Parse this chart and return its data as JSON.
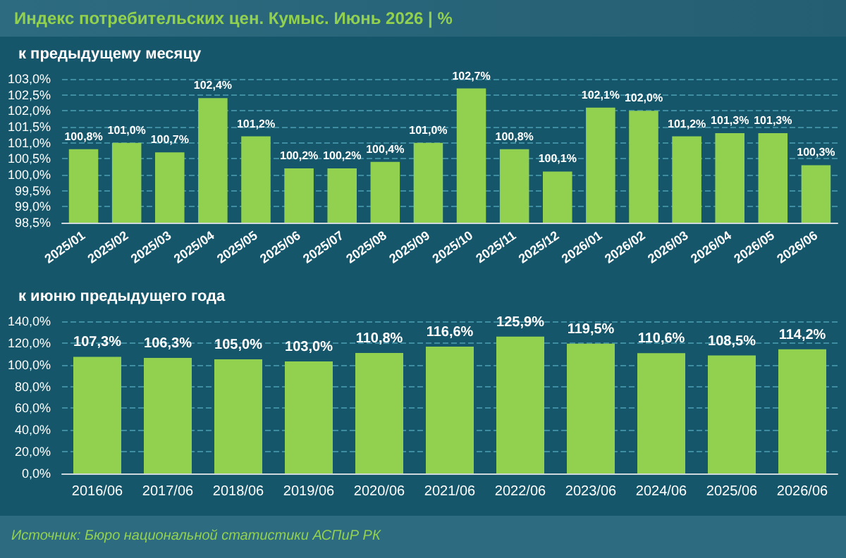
{
  "chart_data": [
    {
      "type": "bar",
      "title": "Индекс потребительских цен. Кумыс. Июнь 2026 | %",
      "subtitle": "к предыдущему месяцу",
      "categories": [
        "2025/01",
        "2025/02",
        "2025/03",
        "2025/04",
        "2025/05",
        "2025/06",
        "2025/07",
        "2025/08",
        "2025/09",
        "2025/10",
        "2025/11",
        "2025/12",
        "2026/01",
        "2026/02",
        "2026/03",
        "2026/04",
        "2026/05",
        "2026/06"
      ],
      "values": [
        100.8,
        101.0,
        100.7,
        102.4,
        101.2,
        100.2,
        100.2,
        100.4,
        101.0,
        102.7,
        100.8,
        100.1,
        102.1,
        102.0,
        101.2,
        101.3,
        101.3,
        100.3
      ],
      "value_labels": [
        "100,8%",
        "101,0%",
        "100,7%",
        "102,4%",
        "101,2%",
        "100,2%",
        "100,2%",
        "100,4%",
        "101,0%",
        "102,7%",
        "100,8%",
        "100,1%",
        "102,1%",
        "102,0%",
        "101,2%",
        "101,3%",
        "101,3%",
        "100,3%"
      ],
      "color": "#92d050",
      "ylim": [
        98.5,
        103
      ],
      "yticks": [
        {
          "value": 98.5,
          "label": "98,5%"
        },
        {
          "value": 99,
          "label": "99,0%"
        },
        {
          "value": 99.5,
          "label": "99,5%"
        },
        {
          "value": 100,
          "label": "100,0%"
        },
        {
          "value": 100.5,
          "label": "100,5%"
        },
        {
          "value": 101,
          "label": "101,0%"
        },
        {
          "value": 101.5,
          "label": "101,5%"
        },
        {
          "value": 102,
          "label": "102,0%"
        },
        {
          "value": 102.5,
          "label": "102,5%"
        },
        {
          "value": 103,
          "label": "103,0%"
        }
      ],
      "grid": "y"
    },
    {
      "type": "bar",
      "subtitle": "к июню предыдущего года",
      "categories": [
        "2016/06",
        "2017/06",
        "2018/06",
        "2019/06",
        "2020/06",
        "2021/06",
        "2022/06",
        "2023/06",
        "2024/06",
        "2025/06",
        "2026/06"
      ],
      "values": [
        107.3,
        106.3,
        105.0,
        103.0,
        110.8,
        116.6,
        125.9,
        119.5,
        110.6,
        108.5,
        114.2
      ],
      "value_labels": [
        "107,3%",
        "106,3%",
        "105,0%",
        "103,0%",
        "110,8%",
        "116,6%",
        "125,9%",
        "119,5%",
        "110,6%",
        "108,5%",
        "114,2%"
      ],
      "color": "#92d050",
      "ylim": [
        0,
        140
      ],
      "yticks": [
        {
          "value": 0,
          "label": "0,0%"
        },
        {
          "value": 20,
          "label": "20,0%"
        },
        {
          "value": 40,
          "label": "40,0%"
        },
        {
          "value": 60,
          "label": "60,0%"
        },
        {
          "value": 80,
          "label": "80,0%"
        },
        {
          "value": 100,
          "label": "100,0%"
        },
        {
          "value": 120,
          "label": "120,0%"
        },
        {
          "value": 140,
          "label": "140,0%"
        }
      ],
      "grid": "y",
      "annotations": [
        "Источник: Бюро национальной статистики АСПиР РК"
      ]
    }
  ]
}
